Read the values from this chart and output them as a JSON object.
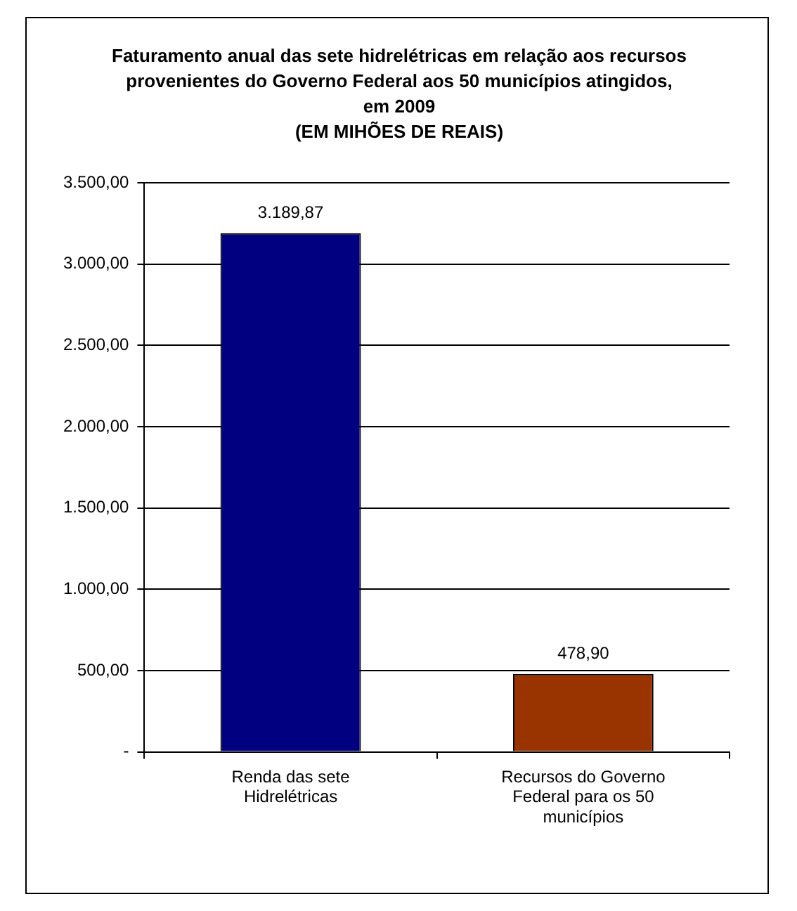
{
  "chart_data": {
    "type": "bar",
    "title": "Faturamento anual das sete hidrelétricas em relação aos recursos provenientes do Governo Federal aos 50 municípios atingidos, em 2009",
    "subtitle": "(EM MIHÕES DE REAIS)",
    "categories": [
      "Renda das sete Hidrelétricas",
      "Recursos do Governo Federal para os 50 municípios"
    ],
    "values": [
      3189.87,
      478.9
    ],
    "colors": [
      "#000080",
      "#993300"
    ],
    "value_labels": [
      "3.189,87",
      "478,90"
    ],
    "ylim": [
      0,
      3500
    ],
    "yticks": [
      {
        "value": 0,
        "label": "-"
      },
      {
        "value": 500,
        "label": "500,00"
      },
      {
        "value": 1000,
        "label": "1.000,00"
      },
      {
        "value": 1500,
        "label": "1.500,00"
      },
      {
        "value": 2000,
        "label": "2.000,00"
      },
      {
        "value": 2500,
        "label": "2.500,00"
      },
      {
        "value": 3000,
        "label": "3.000,00"
      },
      {
        "value": 3500,
        "label": "3.500,00"
      }
    ],
    "grid": "y",
    "legend": false
  }
}
